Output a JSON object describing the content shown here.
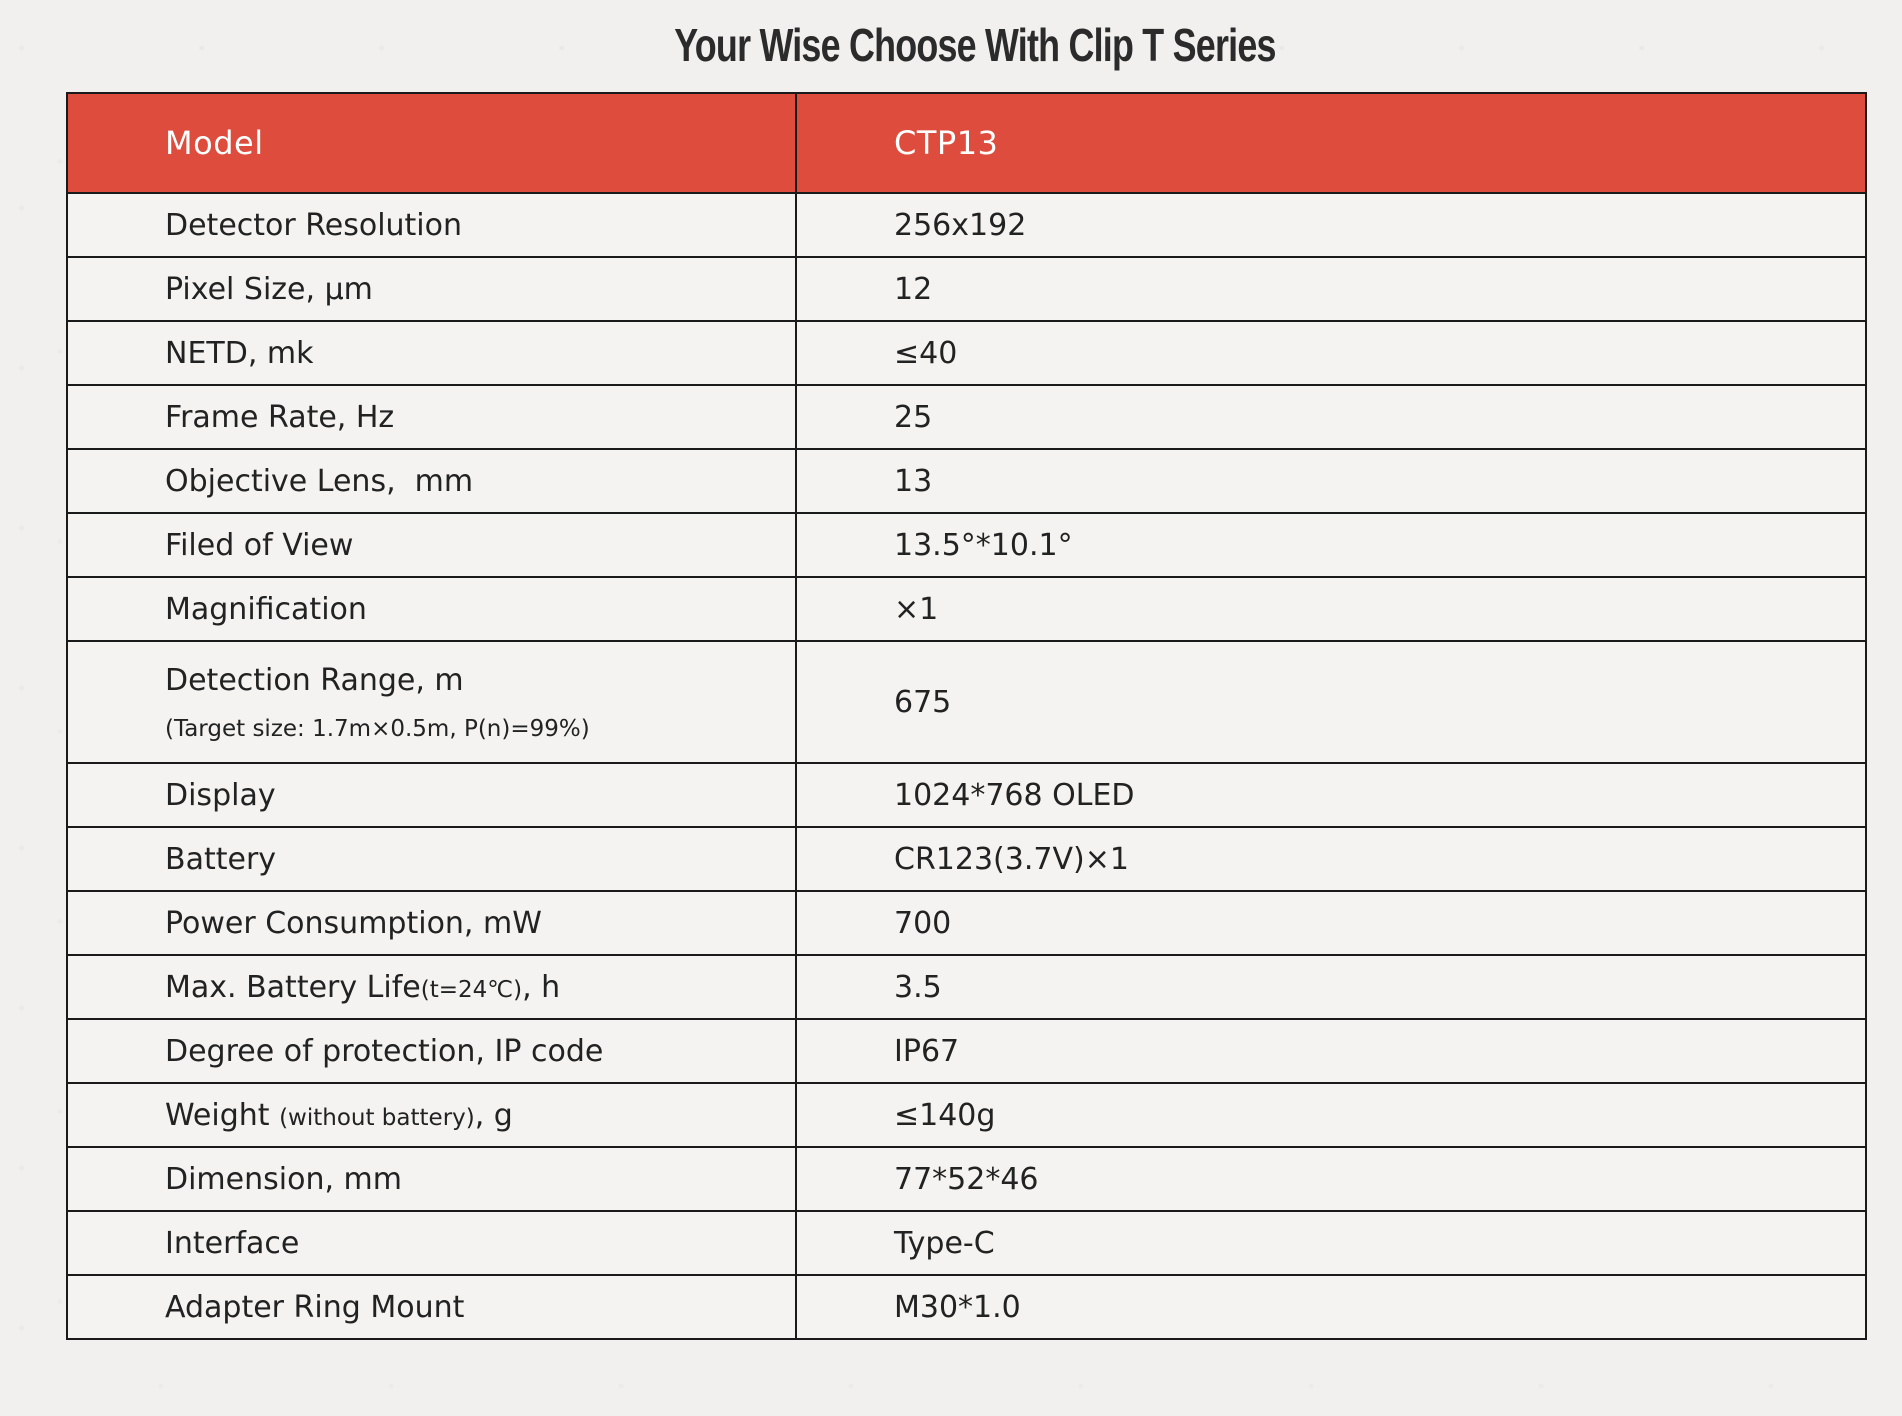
{
  "title": "Your Wise Choose With Clip T Series",
  "colors": {
    "header_bg": "#dd4c3c",
    "header_text": "#ffffff",
    "border": "#1a1a1a",
    "page_bg": "#f1f0ee"
  },
  "table": {
    "header": {
      "label": "Model",
      "value": "CTP13"
    },
    "rows": [
      {
        "label": "Detector Resolution",
        "value": "256x192"
      },
      {
        "label": "Pixel Size, μm",
        "value": "12"
      },
      {
        "label": "NETD, mk",
        "value": "≤40"
      },
      {
        "label": "Frame Rate, Hz",
        "value": "25"
      },
      {
        "label": "Objective Lens,  mm",
        "value": "13"
      },
      {
        "label": "Filed of View",
        "value": "13.5°*10.1°"
      },
      {
        "label": "Magnification",
        "value": "×1"
      },
      {
        "label": "Detection Range, m",
        "note": "(Target size: 1.7m×0.5m, P(n)=99%)",
        "value": "675"
      },
      {
        "label": "Display",
        "value": "1024*768 OLED"
      },
      {
        "label": "Battery",
        "value": "CR123(3.7V)×1"
      },
      {
        "label": "Power Consumption, mW",
        "value": "700"
      },
      {
        "label_main": "Max. Battery Life",
        "label_small": "(t=24℃)",
        "label_tail": ", h",
        "value": "3.5"
      },
      {
        "label": "Degree of protection, IP code",
        "value": "IP67"
      },
      {
        "label_main": "Weight ",
        "label_small": "(without battery)",
        "label_tail": ", g",
        "value": "≤140g"
      },
      {
        "label": "Dimension, mm",
        "value": "77*52*46"
      },
      {
        "label": "Interface",
        "value": "Type-C"
      },
      {
        "label": "Adapter Ring Mount",
        "value": "M30*1.0"
      }
    ]
  }
}
